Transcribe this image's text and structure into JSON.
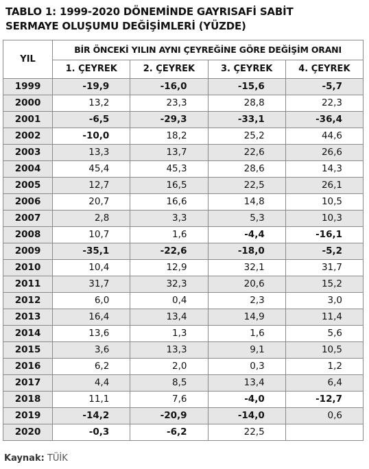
{
  "title_line1": "TABLO 1: 1999-2020 DÖNEMİNDE GAYRISAFİ SABİT",
  "title_line2": "SERMAYE OLUŞUMU DEĞİŞİMLERİ (YÜZDE)",
  "header": {
    "year_label": "YIL",
    "group_label": "BİR ÖNCEKİ YILIN AYNI ÇEYREĞİNE GÖRE DEĞİŞİM ORANI",
    "quarters": [
      "1. ÇEYREK",
      "2. ÇEYREK",
      "3. ÇEYREK",
      "4. ÇEYREK"
    ]
  },
  "rows": [
    {
      "year": "1999",
      "values": [
        "-19,9",
        "-16,0",
        "-15,6",
        "-5,7"
      ]
    },
    {
      "year": "2000",
      "values": [
        "13,2",
        "23,3",
        "28,8",
        "22,3"
      ]
    },
    {
      "year": "2001",
      "values": [
        "-6,5",
        "-29,3",
        "-33,1",
        "-36,4"
      ]
    },
    {
      "year": "2002",
      "values": [
        "-10,0",
        "18,2",
        "25,2",
        "44,6"
      ]
    },
    {
      "year": "2003",
      "values": [
        "13,3",
        "13,7",
        "22,6",
        "26,6"
      ]
    },
    {
      "year": "2004",
      "values": [
        "45,4",
        "45,3",
        "28,6",
        "14,3"
      ]
    },
    {
      "year": "2005",
      "values": [
        "12,7",
        "16,5",
        "22,5",
        "26,1"
      ]
    },
    {
      "year": "2006",
      "values": [
        "20,7",
        "16,6",
        "14,8",
        "10,5"
      ]
    },
    {
      "year": "2007",
      "values": [
        "2,8",
        "3,3",
        "5,3",
        "10,3"
      ]
    },
    {
      "year": "2008",
      "values": [
        "10,7",
        "1,6",
        "-4,4",
        "-16,1"
      ]
    },
    {
      "year": "2009",
      "values": [
        "-35,1",
        "-22,6",
        "-18,0",
        "-5,2"
      ]
    },
    {
      "year": "2010",
      "values": [
        "10,4",
        "12,9",
        "32,1",
        "31,7"
      ]
    },
    {
      "year": "2011",
      "values": [
        "31,7",
        "32,3",
        "20,6",
        "15,2"
      ]
    },
    {
      "year": "2012",
      "values": [
        "6,0",
        "0,4",
        "2,3",
        "3,0"
      ]
    },
    {
      "year": "2013",
      "values": [
        "16,4",
        "13,4",
        "14,9",
        "11,4"
      ]
    },
    {
      "year": "2014",
      "values": [
        "13,6",
        "1,3",
        "1,6",
        "5,6"
      ]
    },
    {
      "year": "2015",
      "values": [
        "3,6",
        "13,3",
        "9,1",
        "10,5"
      ]
    },
    {
      "year": "2016",
      "values": [
        "6,2",
        "2,0",
        "0,3",
        "1,2"
      ]
    },
    {
      "year": "2017",
      "values": [
        "4,4",
        "8,5",
        "13,4",
        "6,4"
      ]
    },
    {
      "year": "2018",
      "values": [
        "11,1",
        "7,6",
        "-4,0",
        "-12,7"
      ]
    },
    {
      "year": "2019",
      "values": [
        "-14,2",
        "-20,9",
        "-14,0",
        "0,6"
      ]
    },
    {
      "year": "2020",
      "values": [
        "-0,3",
        "-6,2",
        "22,5",
        ""
      ]
    }
  ],
  "source_label": "Kaynak:",
  "source_value": "TÜİK"
}
